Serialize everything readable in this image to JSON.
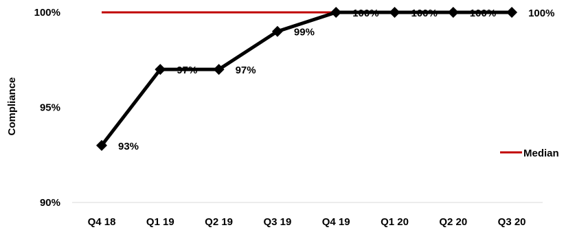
{
  "chart_data": {
    "type": "line",
    "title": "",
    "xlabel": "",
    "ylabel": "Compliance",
    "ylim": [
      90,
      100
    ],
    "y_ticks": [
      90,
      95,
      100
    ],
    "y_tick_labels": [
      "90%",
      "95%",
      "100%"
    ],
    "grid": false,
    "categories": [
      "Q4 18",
      "Q1 19",
      "Q2 19",
      "Q3 19",
      "Q4 19",
      "Q1 20",
      "Q2 20",
      "Q3 20"
    ],
    "series": [
      {
        "values": [
          93,
          97,
          97,
          99,
          100,
          100,
          100,
          100
        ],
        "data_labels": [
          "93%",
          "97%",
          "97%",
          "99%",
          "100%",
          "100%",
          "100%",
          "100%"
        ],
        "color": "#000000",
        "marker": "diamond-icon"
      },
      {
        "name": "Median",
        "values": [
          100,
          100,
          100,
          100,
          100,
          100,
          100,
          100
        ],
        "color": "#c00000"
      }
    ],
    "legend": {
      "position": "right",
      "entries": [
        "Median"
      ]
    }
  }
}
